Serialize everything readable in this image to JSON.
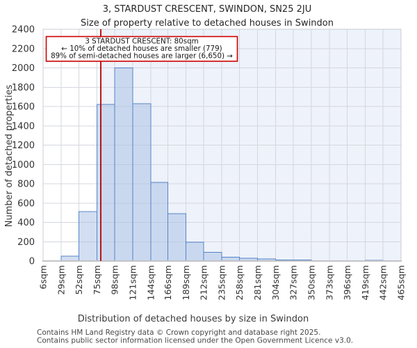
{
  "footer": {
    "line1": "Contains HM Land Registry data © Crown copyright and database right 2025.",
    "line2": "Contains public sector information licensed under the Open Government Licence v3.0."
  },
  "chart_data": {
    "type": "bar",
    "title": "3, STARDUST CRESCENT, SWINDON, SN25 2JU",
    "subtitle": "Size of property relative to detached houses in Swindon",
    "xlabel": "Distribution of detached houses by size in Swindon",
    "ylabel": "Number of detached properties",
    "categories": [
      "6sqm",
      "29sqm",
      "52sqm",
      "75sqm",
      "98sqm",
      "121sqm",
      "144sqm",
      "166sqm",
      "189sqm",
      "212sqm",
      "235sqm",
      "258sqm",
      "281sqm",
      "304sqm",
      "327sqm",
      "350sqm",
      "373sqm",
      "396sqm",
      "419sqm",
      "442sqm",
      "465sqm"
    ],
    "bin_edges": [
      6,
      29,
      52,
      75,
      98,
      121,
      144,
      166,
      189,
      212,
      235,
      258,
      281,
      304,
      327,
      350,
      373,
      396,
      419,
      442,
      465
    ],
    "values": [
      0,
      50,
      510,
      1620,
      2000,
      1630,
      815,
      490,
      195,
      90,
      40,
      30,
      20,
      10,
      10,
      0,
      0,
      0,
      8,
      0
    ],
    "ylim": [
      0,
      2400
    ],
    "yticks": [
      0,
      200,
      400,
      600,
      800,
      1000,
      1200,
      1400,
      1600,
      1800,
      2000,
      2200,
      2400
    ],
    "grid": true,
    "legend": "none",
    "property_marker": {
      "sqm": 80,
      "label": "80sqm"
    },
    "annotation": {
      "lines": [
        "3 STARDUST CRESCENT: 80sqm",
        "← 10% of detached houses are smaller (779)",
        "89% of semi-detached houses are larger (6,650) →"
      ]
    },
    "colors": {
      "bar_fill": "#d9e2f3",
      "bar_edge": "#5585c7",
      "shade_right_of_marker": "#eef2fa",
      "gridline": "#d4d7de",
      "marker_line": "#b30000",
      "annotation_border": "#cc0000"
    }
  }
}
